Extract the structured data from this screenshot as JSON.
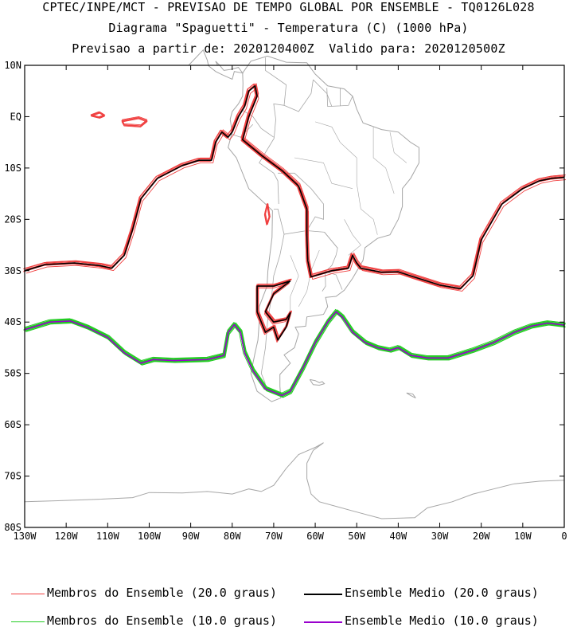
{
  "titles": {
    "line1": "CPTEC/INPE/MCT - PREVISAO DE TEMPO GLOBAL POR ENSEMBLE - TQ0126L028",
    "line2": "Diagrama \"Spaguetti\" - Temperatura (C) (1000 hPa)",
    "line3": "Previsao a partir de: 2020120400Z  Valido para: 2020120500Z"
  },
  "map": {
    "lon_range": [
      -130,
      0
    ],
    "lat_range": [
      -80,
      10
    ],
    "lat_ticks": [
      {
        "value": 10,
        "label": "10N"
      },
      {
        "value": 0,
        "label": "EQ"
      },
      {
        "value": -10,
        "label": "10S"
      },
      {
        "value": -20,
        "label": "20S"
      },
      {
        "value": -30,
        "label": "30S"
      },
      {
        "value": -40,
        "label": "40S"
      },
      {
        "value": -50,
        "label": "50S"
      },
      {
        "value": -60,
        "label": "60S"
      },
      {
        "value": -70,
        "label": "70S"
      },
      {
        "value": -80,
        "label": "80S"
      }
    ],
    "lon_ticks": [
      {
        "value": -130,
        "label": "130W"
      },
      {
        "value": -120,
        "label": "120W"
      },
      {
        "value": -110,
        "label": "110W"
      },
      {
        "value": -100,
        "label": "100W"
      },
      {
        "value": -90,
        "label": "90W"
      },
      {
        "value": -80,
        "label": "80W"
      },
      {
        "value": -70,
        "label": "70W"
      },
      {
        "value": -60,
        "label": "60W"
      },
      {
        "value": -50,
        "label": "50W"
      },
      {
        "value": -40,
        "label": "40W"
      },
      {
        "value": -30,
        "label": "30W"
      },
      {
        "value": -20,
        "label": "20W"
      },
      {
        "value": -10,
        "label": "10W"
      },
      {
        "value": 0,
        "label": "0"
      }
    ],
    "colors": {
      "member20": "#f04040",
      "mean20": "#000000",
      "member10": "#22cc22",
      "mean10": "#9900cc",
      "coast": "#a6a6a6"
    },
    "isotherm_20": [
      [
        -130,
        -30
      ],
      [
        -125,
        -28.8
      ],
      [
        -118,
        -28.5
      ],
      [
        -112,
        -29
      ],
      [
        -109,
        -29.5
      ],
      [
        -106,
        -27
      ],
      [
        -104,
        -22
      ],
      [
        -102,
        -16
      ],
      [
        -98,
        -12
      ],
      [
        -92,
        -9.5
      ],
      [
        -88,
        -8.5
      ],
      [
        -85,
        -8.5
      ],
      [
        -84,
        -5
      ],
      [
        -82.5,
        -3
      ],
      [
        -81,
        -4
      ],
      [
        -80,
        -3
      ],
      [
        -78.5,
        0
      ],
      [
        -77,
        2
      ],
      [
        -76,
        5
      ],
      [
        -74.5,
        6
      ],
      [
        -74,
        4
      ],
      [
        -76,
        0
      ],
      [
        -77.5,
        -4.5
      ],
      [
        -73,
        -7.5
      ],
      [
        -68,
        -10.5
      ],
      [
        -64,
        -13.5
      ],
      [
        -62,
        -18
      ],
      [
        -62,
        -23
      ],
      [
        -61.8,
        -28
      ],
      [
        -61,
        -31.2
      ],
      [
        -56,
        -30
      ],
      [
        -52,
        -29.5
      ],
      [
        -51,
        -27
      ],
      [
        -50,
        -28.5
      ],
      [
        -49,
        -29.5
      ],
      [
        -44,
        -30.3
      ],
      [
        -40,
        -30.2
      ],
      [
        -37,
        -31
      ],
      [
        -30,
        -32.8
      ],
      [
        -25,
        -33.5
      ],
      [
        -22,
        -31
      ],
      [
        -20,
        -24
      ],
      [
        -15,
        -17
      ],
      [
        -10,
        -14
      ],
      [
        -6,
        -12.5
      ],
      [
        -3,
        -12
      ],
      [
        0,
        -11.8
      ]
    ],
    "isotherm_20_south_loop": [
      [
        -66,
        -32
      ],
      [
        -70,
        -34.5
      ],
      [
        -72,
        -38
      ],
      [
        -70,
        -40
      ],
      [
        -67,
        -39.5
      ],
      [
        -66,
        -38.2
      ],
      [
        -67,
        -41
      ],
      [
        -69,
        -43.5
      ],
      [
        -70,
        -41
      ],
      [
        -72,
        -42
      ],
      [
        -74,
        -38
      ],
      [
        -74,
        -33
      ],
      [
        -70,
        -33
      ],
      [
        -66,
        -32
      ]
    ],
    "isotherm_10": [
      [
        -130,
        -41.5
      ],
      [
        -124,
        -40
      ],
      [
        -119,
        -39.8
      ],
      [
        -115,
        -41
      ],
      [
        -110,
        -43
      ],
      [
        -106,
        -46
      ],
      [
        -102,
        -48
      ],
      [
        -99,
        -47.3
      ],
      [
        -94,
        -47.5
      ],
      [
        -86,
        -47.3
      ],
      [
        -82,
        -46.5
      ],
      [
        -81,
        -42
      ],
      [
        -79.5,
        -40.5
      ],
      [
        -78,
        -42
      ],
      [
        -77,
        -46
      ],
      [
        -75,
        -49.5
      ],
      [
        -72,
        -53
      ],
      [
        -68,
        -54.3
      ],
      [
        -66,
        -53.5
      ],
      [
        -63,
        -49
      ],
      [
        -60,
        -44
      ],
      [
        -57,
        -40
      ],
      [
        -55,
        -38
      ],
      [
        -53.5,
        -39
      ],
      [
        -51,
        -42
      ],
      [
        -48,
        -44
      ],
      [
        -45,
        -45
      ],
      [
        -42,
        -45.5
      ],
      [
        -40,
        -45
      ],
      [
        -37,
        -46.5
      ],
      [
        -33,
        -47
      ],
      [
        -28,
        -47
      ],
      [
        -22,
        -45.5
      ],
      [
        -17,
        -44
      ],
      [
        -12,
        -42
      ],
      [
        -8,
        -40.8
      ],
      [
        -4,
        -40.2
      ],
      [
        0,
        -40.6
      ]
    ],
    "islands": [
      [
        [
          -114,
          0.2
        ],
        [
          -112,
          0.8
        ],
        [
          -110.8,
          0.2
        ],
        [
          -112,
          -0.2
        ],
        [
          -114,
          0.2
        ]
      ],
      [
        [
          -106.5,
          -0.8
        ],
        [
          -102.5,
          -0.2
        ],
        [
          -100.5,
          -0.8
        ],
        [
          -102,
          -1.8
        ],
        [
          -106,
          -1.6
        ],
        [
          -106.5,
          -0.8
        ]
      ],
      [
        [
          -71.5,
          -17
        ],
        [
          -71,
          -19.5
        ],
        [
          -71.6,
          -21
        ],
        [
          -72.1,
          -19
        ],
        [
          -71.5,
          -17
        ]
      ]
    ],
    "coast_south_america": [
      [
        -77.5,
        8.5
      ],
      [
        -75.5,
        10.8
      ],
      [
        -71.5,
        11.8
      ],
      [
        -67,
        10.6
      ],
      [
        -62,
        10.5
      ],
      [
        -60,
        8.3
      ],
      [
        -57,
        6
      ],
      [
        -53,
        5.4
      ],
      [
        -51,
        4
      ],
      [
        -50,
        1.5
      ],
      [
        -48.5,
        -1.2
      ],
      [
        -44,
        -2.5
      ],
      [
        -40,
        -3
      ],
      [
        -37,
        -5
      ],
      [
        -35,
        -6
      ],
      [
        -35,
        -9
      ],
      [
        -37,
        -12
      ],
      [
        -39,
        -14
      ],
      [
        -39,
        -17.5
      ],
      [
        -40,
        -20
      ],
      [
        -42,
        -23
      ],
      [
        -45,
        -23.7
      ],
      [
        -48,
        -25.5
      ],
      [
        -48.5,
        -28
      ],
      [
        -51,
        -31.5
      ],
      [
        -53,
        -33.8
      ],
      [
        -55,
        -35
      ],
      [
        -57.5,
        -35.2
      ],
      [
        -57,
        -37
      ],
      [
        -58,
        -38.5
      ],
      [
        -62,
        -39
      ],
      [
        -62.3,
        -40.8
      ],
      [
        -64.8,
        -41
      ],
      [
        -64,
        -42.3
      ],
      [
        -65,
        -45
      ],
      [
        -67.5,
        -46.4
      ],
      [
        -66,
        -48
      ],
      [
        -68.5,
        -50.2
      ],
      [
        -68.5,
        -52.5
      ],
      [
        -68.3,
        -54.8
      ],
      [
        -70.5,
        -55.5
      ],
      [
        -74,
        -53.5
      ],
      [
        -75.5,
        -50
      ],
      [
        -74.5,
        -46
      ],
      [
        -73.8,
        -43.5
      ],
      [
        -73.5,
        -40
      ],
      [
        -73.5,
        -37
      ],
      [
        -71.6,
        -33
      ],
      [
        -71.4,
        -30
      ],
      [
        -70.4,
        -23.5
      ],
      [
        -70.3,
        -18.3
      ],
      [
        -72,
        -17
      ],
      [
        -76,
        -14
      ],
      [
        -77,
        -12
      ],
      [
        -79,
        -8
      ],
      [
        -81,
        -6
      ],
      [
        -80,
        -3
      ],
      [
        -80.5,
        -0.5
      ],
      [
        -80,
        1
      ],
      [
        -78.5,
        2.5
      ],
      [
        -77.5,
        4
      ],
      [
        -77.4,
        6.5
      ],
      [
        -77.5,
        8.5
      ]
    ],
    "coast_central_america": [
      [
        -90.5,
        10
      ],
      [
        -87,
        13
      ],
      [
        -86,
        11
      ],
      [
        -85.7,
        9.9
      ],
      [
        -84,
        8.8
      ],
      [
        -82.5,
        8.2
      ],
      [
        -80,
        7.3
      ],
      [
        -79.5,
        8.8
      ],
      [
        -77.5,
        8.5
      ],
      [
        -78.5,
        9.6
      ],
      [
        -80.5,
        9.2
      ],
      [
        -82,
        9
      ],
      [
        -83,
        10
      ],
      [
        -84,
        10.8
      ],
      [
        -83.5,
        10
      ]
    ],
    "borders": [
      [
        [
          -78,
          1.5
        ],
        [
          -75,
          0
        ],
        [
          -73,
          -2.3
        ],
        [
          -70,
          -4
        ]
      ],
      [
        [
          -80.2,
          -3.4
        ],
        [
          -78,
          -4
        ],
        [
          -75,
          -1.5
        ]
      ],
      [
        [
          -69.9,
          -4.2
        ],
        [
          -72,
          -7
        ],
        [
          -73.5,
          -9
        ],
        [
          -70,
          -11
        ],
        [
          -69,
          -12.5
        ],
        [
          -68.8,
          -17
        ]
      ],
      [
        [
          -70,
          -18
        ],
        [
          -69,
          -18
        ],
        [
          -67.5,
          -22.9
        ],
        [
          -62,
          -22.2
        ],
        [
          -57.8,
          -22.5
        ],
        [
          -54.6,
          -25.6
        ]
      ],
      [
        [
          -67.5,
          -22.9
        ],
        [
          -68.5,
          -27
        ],
        [
          -70,
          -31
        ],
        [
          -70.5,
          -35
        ],
        [
          -71.5,
          -40
        ],
        [
          -72,
          -45
        ],
        [
          -73,
          -50
        ],
        [
          -72,
          -52
        ]
      ],
      [
        [
          -62,
          -22.2
        ],
        [
          -60,
          -19.5
        ],
        [
          -58,
          -20
        ],
        [
          -58,
          -17
        ],
        [
          -61,
          -14
        ],
        [
          -65,
          -11
        ],
        [
          -69,
          -11
        ]
      ],
      [
        [
          -57.8,
          -22.5
        ],
        [
          -54.6,
          -25.6
        ],
        [
          -55,
          -27
        ],
        [
          -56,
          -29
        ],
        [
          -57.6,
          -30.2
        ],
        [
          -57.5,
          -33
        ],
        [
          -58.3,
          -34
        ]
      ],
      [
        [
          -57.6,
          -30.2
        ],
        [
          -55,
          -30.8
        ],
        [
          -53.5,
          -33.7
        ]
      ],
      [
        [
          -72,
          11.5
        ],
        [
          -72,
          9
        ],
        [
          -67,
          6.2
        ],
        [
          -67.5,
          2.2
        ],
        [
          -70,
          2.5
        ],
        [
          -69.5,
          -0.5
        ],
        [
          -69.9,
          -4.2
        ]
      ],
      [
        [
          -67.5,
          2.2
        ],
        [
          -64,
          1
        ],
        [
          -61,
          4.5
        ],
        [
          -60.5,
          7.2
        ]
      ],
      [
        [
          -60.5,
          7.2
        ],
        [
          -57.2,
          4.5
        ],
        [
          -56,
          2
        ]
      ],
      [
        [
          -57.2,
          5.6
        ],
        [
          -57,
          2
        ],
        [
          -54,
          2.1
        ],
        [
          -54,
          5.6
        ]
      ],
      [
        [
          -54,
          2.1
        ],
        [
          -52,
          2.2
        ],
        [
          -51,
          4
        ]
      ]
    ],
    "states": [
      [
        [
          -60,
          -1
        ],
        [
          -56,
          -2
        ],
        [
          -54,
          -5
        ],
        [
          -50,
          -8
        ]
      ],
      [
        [
          -65,
          -8
        ],
        [
          -58,
          -9
        ],
        [
          -56,
          -13
        ],
        [
          -51,
          -14
        ]
      ],
      [
        [
          -50,
          -8
        ],
        [
          -50,
          -13
        ],
        [
          -49,
          -18
        ],
        [
          -46,
          -20
        ],
        [
          -45,
          -23
        ]
      ],
      [
        [
          -46,
          -2
        ],
        [
          -46,
          -8
        ],
        [
          -43,
          -10
        ],
        [
          -41,
          -15
        ]
      ],
      [
        [
          -42,
          -3
        ],
        [
          -41,
          -7
        ],
        [
          -38,
          -9
        ]
      ],
      [
        [
          -53,
          -20
        ],
        [
          -51,
          -23
        ],
        [
          -49,
          -25
        ],
        [
          -52,
          -27
        ]
      ],
      [
        [
          -59,
          -26
        ],
        [
          -61,
          -30
        ],
        [
          -62,
          -34
        ],
        [
          -64,
          -37
        ]
      ],
      [
        [
          -66,
          -27
        ],
        [
          -64,
          -31
        ],
        [
          -66,
          -35
        ],
        [
          -66,
          -39
        ]
      ]
    ],
    "antarctica": [
      [
        -130,
        -75
      ],
      [
        -122,
        -74.8
      ],
      [
        -112,
        -74.5
      ],
      [
        -104,
        -74.2
      ],
      [
        -100,
        -73.2
      ],
      [
        -92,
        -73.3
      ],
      [
        -86,
        -73
      ],
      [
        -80,
        -73.5
      ],
      [
        -76,
        -72.5
      ],
      [
        -73,
        -73
      ],
      [
        -70,
        -71.8
      ],
      [
        -67,
        -68.5
      ],
      [
        -64,
        -65.8
      ],
      [
        -60,
        -64.4
      ],
      [
        -58,
        -63.5
      ],
      [
        -60.5,
        -65
      ],
      [
        -62,
        -67.5
      ],
      [
        -62,
        -70.5
      ],
      [
        -61,
        -73.5
      ],
      [
        -59,
        -75
      ],
      [
        -50,
        -77
      ],
      [
        -44,
        -78.3
      ],
      [
        -36,
        -78.1
      ],
      [
        -33,
        -76.2
      ],
      [
        -27,
        -75
      ],
      [
        -22,
        -73.5
      ],
      [
        -17,
        -72.5
      ],
      [
        -12,
        -71.5
      ],
      [
        -6,
        -71
      ],
      [
        0,
        -70.8
      ]
    ],
    "falklands": [
      [
        [
          -61.3,
          -51.2
        ],
        [
          -60,
          -51.4
        ],
        [
          -59,
          -51.8
        ],
        [
          -58.3,
          -51.6
        ],
        [
          -57.8,
          -52
        ],
        [
          -59,
          -52.3
        ],
        [
          -60.5,
          -52.2
        ],
        [
          -61.3,
          -51.2
        ]
      ]
    ],
    "south_georgia": [
      [
        [
          -38,
          -53.8
        ],
        [
          -36.5,
          -54
        ],
        [
          -35.8,
          -54.8
        ],
        [
          -37,
          -54.3
        ],
        [
          -38,
          -53.8
        ]
      ]
    ]
  },
  "legend": {
    "members_20": "Membros do Ensemble (20.0 graus)",
    "mean_20": "Ensemble Medio (20.0 graus)",
    "members_10": "Membros do Ensemble (10.0 graus)",
    "mean_10": "Ensemble Medio (10.0 graus)"
  }
}
